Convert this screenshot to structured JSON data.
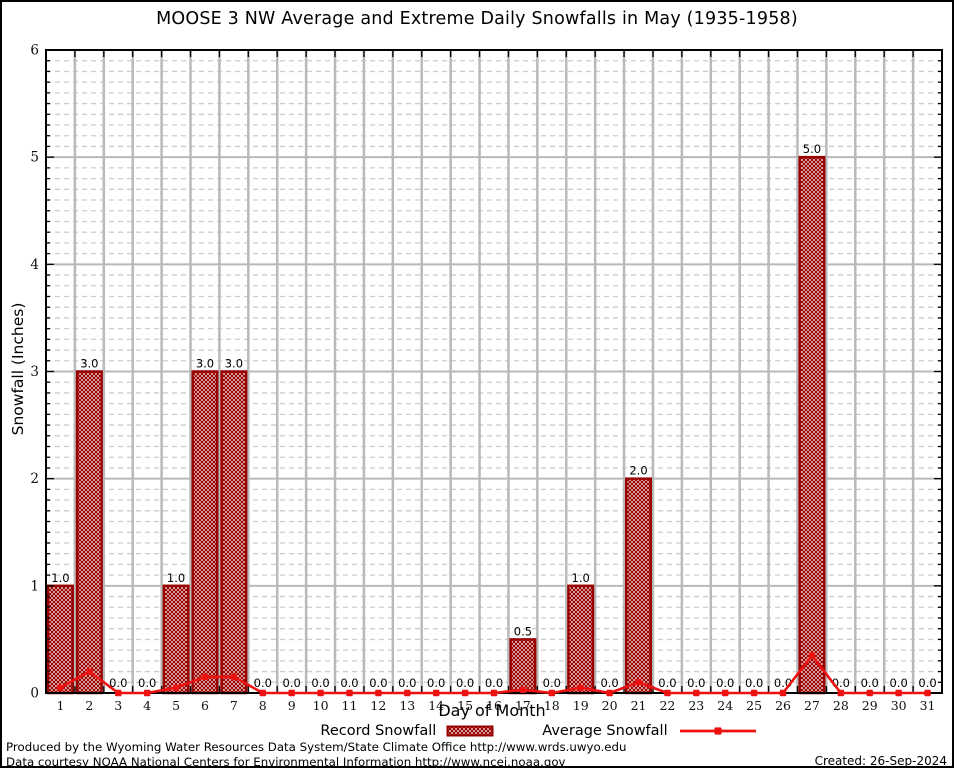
{
  "title": "MOOSE 3 NW Average and Extreme Daily Snowfalls in May (1935-1958)",
  "colors": {
    "bar_border": "#990000",
    "bar_hatch": "#990000",
    "line": "#ee1111",
    "grid_major": "#b9b9b9",
    "grid_minor": "#cccccc",
    "axis": "#000000"
  },
  "legend": {
    "record_label": "Record Snowfall",
    "average_label": "Average Snowfall"
  },
  "footer": {
    "line1": "Produced by the Wyoming Water Resources Data System/State Climate Office http://www.wrds.uwyo.edu",
    "line2": "Data courtesy NOAA National Centers for Environmental Information http://www.ncei.noaa.gov",
    "created": "Created: 26-Sep-2024"
  },
  "chart_data": {
    "type": "bar",
    "title": "MOOSE 3 NW Average and Extreme Daily Snowfalls in May (1935-1958)",
    "xlabel": "Day of Month",
    "ylabel": "Snowfall (Inches)",
    "ylim": [
      0,
      6
    ],
    "ytick_step": 1,
    "y_minor_step": 0.1,
    "y_ticks": [
      "0",
      "1",
      "2",
      "3",
      "4",
      "5",
      "6"
    ],
    "grid": true,
    "legend_position": "bottom",
    "categories": [
      "1",
      "2",
      "3",
      "4",
      "5",
      "6",
      "7",
      "8",
      "9",
      "10",
      "11",
      "12",
      "13",
      "14",
      "15",
      "16",
      "17",
      "18",
      "19",
      "20",
      "21",
      "22",
      "23",
      "24",
      "25",
      "26",
      "27",
      "28",
      "29",
      "30",
      "31"
    ],
    "series": [
      {
        "name": "Record Snowfall",
        "type": "bar",
        "values": [
          1,
          3,
          0,
          0,
          1,
          3,
          3,
          0,
          0,
          0,
          0,
          0,
          0,
          0,
          0,
          0,
          0.5,
          0,
          1,
          0,
          2,
          0,
          0,
          0,
          0,
          0,
          5,
          0,
          0,
          0,
          0
        ],
        "labels": [
          "1.0",
          "3.0",
          "0.0",
          "0.0",
          "1.0",
          "3.0",
          "3.0",
          "0.0",
          "0.0",
          "0.0",
          "0.0",
          "0.0",
          "0.0",
          "0.0",
          "0.0",
          "0.0",
          "0.5",
          "0.0",
          "1.0",
          "0.0",
          "2.0",
          "0.0",
          "0.0",
          "0.0",
          "0.0",
          "0.0",
          "5.0",
          "0.0",
          "0.0",
          "0.0",
          "0.0"
        ]
      },
      {
        "name": "Average Snowfall",
        "type": "line",
        "values": [
          0.05,
          0.2,
          0,
          0,
          0.05,
          0.15,
          0.15,
          0,
          0,
          0,
          0,
          0,
          0,
          0,
          0,
          0,
          0.03,
          0,
          0.05,
          0,
          0.1,
          0,
          0,
          0,
          0,
          0,
          0.35,
          0,
          0,
          0,
          0
        ]
      }
    ]
  }
}
